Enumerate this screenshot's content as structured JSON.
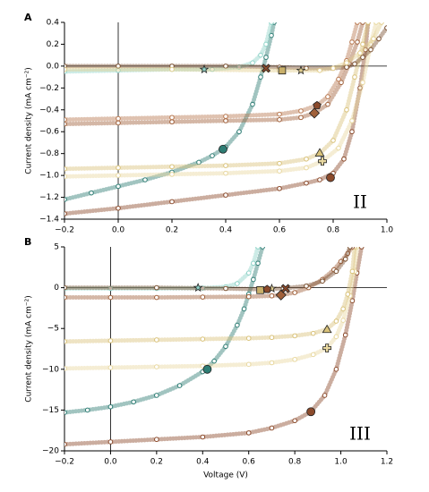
{
  "chart_data": [
    {
      "type": "line",
      "panel": "A",
      "annotation": "II",
      "ylabel": "Current density (mA cm⁻²)",
      "xlim": [
        -0.2,
        1.0
      ],
      "ylim": [
        -1.4,
        0.4
      ],
      "xticks": [
        {
          "value": -0.2,
          "label": "−0.2"
        },
        {
          "value": 0,
          "label": "0.0"
        },
        0.2,
        0.4,
        0.6,
        0.8,
        {
          "value": 1,
          "label": "1.0"
        }
      ],
      "yticks": [
        0.4,
        0.2,
        {
          "value": 0,
          "label": "0.0"
        },
        {
          "value": -0.2,
          "label": "−0.2"
        },
        {
          "value": -0.4,
          "label": "−0.4"
        },
        {
          "value": -0.6,
          "label": "−0.6"
        },
        {
          "value": -0.8,
          "label": "−0.8"
        },
        {
          "value": -1,
          "label": "−1.0"
        },
        {
          "value": -1.2,
          "label": "−1.2"
        },
        {
          "value": -1.4,
          "label": "−1.4"
        }
      ],
      "series": [
        {
          "color": "#2e7d74",
          "x": [
            -0.2,
            -0.1,
            0,
            0.1,
            0.2,
            0.3,
            0.35,
            0.4,
            0.45,
            0.5,
            0.53,
            0.55,
            0.57,
            0.58
          ],
          "values": [
            -1.22,
            -1.16,
            -1.1,
            -1.04,
            -0.97,
            -0.88,
            -0.82,
            -0.74,
            -0.6,
            -0.35,
            -0.1,
            0.08,
            0.28,
            0.4
          ]
        },
        {
          "color": "#8fd3c8",
          "x": [
            -0.2,
            0,
            0.2,
            0.35,
            0.45,
            0.5,
            0.53,
            0.55,
            0.57
          ],
          "values": [
            -0.05,
            -0.04,
            -0.03,
            -0.03,
            -0.01,
            0.03,
            0.1,
            0.2,
            0.4
          ]
        },
        {
          "color": "#8b4a2b",
          "x": [
            -0.2,
            0,
            0.2,
            0.4,
            0.6,
            0.7,
            0.75,
            0.8,
            0.84,
            0.87,
            0.9,
            0.92,
            0.93
          ],
          "values": [
            -1.35,
            -1.3,
            -1.24,
            -1.18,
            -1.12,
            -1.07,
            -1.04,
            -0.98,
            -0.85,
            -0.6,
            -0.2,
            0.15,
            0.4
          ]
        },
        {
          "color": "#e8d8a0",
          "x": [
            -0.2,
            0,
            0.2,
            0.4,
            0.6,
            0.7,
            0.76,
            0.82,
            0.87,
            0.91,
            0.94,
            0.96
          ],
          "values": [
            -1.01,
            -1.0,
            -0.99,
            -0.98,
            -0.96,
            -0.93,
            -0.87,
            -0.75,
            -0.5,
            -0.15,
            0.2,
            0.4
          ]
        },
        {
          "color": "#d9c27a",
          "x": [
            -0.2,
            0,
            0.2,
            0.4,
            0.6,
            0.7,
            0.75,
            0.8,
            0.85,
            0.88,
            0.91,
            0.93
          ],
          "values": [
            -0.94,
            -0.93,
            -0.92,
            -0.91,
            -0.89,
            -0.85,
            -0.8,
            -0.68,
            -0.4,
            -0.1,
            0.2,
            0.4
          ]
        },
        {
          "color": "#a0603a",
          "x": [
            -0.2,
            0,
            0.2,
            0.4,
            0.6,
            0.68,
            0.73,
            0.78,
            0.83,
            0.86,
            0.89,
            0.91
          ],
          "values": [
            -0.53,
            -0.52,
            -0.51,
            -0.5,
            -0.49,
            -0.47,
            -0.43,
            -0.35,
            -0.15,
            0.02,
            0.22,
            0.4
          ]
        },
        {
          "color": "#b87850",
          "x": [
            -0.2,
            0,
            0.2,
            0.4,
            0.6,
            0.68,
            0.74,
            0.78,
            0.82,
            0.85,
            0.87,
            0.89
          ],
          "values": [
            -0.49,
            -0.48,
            -0.47,
            -0.46,
            -0.44,
            -0.41,
            -0.36,
            -0.28,
            -0.12,
            0.05,
            0.22,
            0.4
          ]
        },
        {
          "color": "#7a5030",
          "x": [
            -0.2,
            0,
            0.2,
            0.4,
            0.6,
            0.7,
            0.8,
            0.85,
            0.88,
            0.91,
            0.94,
            0.97,
            1.0
          ],
          "values": [
            0,
            0,
            0,
            0,
            -0.01,
            -0.02,
            -0.02,
            -0.01,
            0.02,
            0.08,
            0.15,
            0.25,
            0.35
          ]
        },
        {
          "color": "#e3cf8e",
          "x": [
            -0.2,
            0.2,
            0.6,
            0.75,
            0.8,
            0.85,
            0.9,
            0.95,
            0.98
          ],
          "values": [
            -0.03,
            -0.03,
            -0.04,
            -0.04,
            -0.02,
            0.03,
            0.12,
            0.25,
            0.4
          ]
        }
      ],
      "markers": [
        {
          "x": 0.39,
          "y": -0.76,
          "shape": "circle",
          "color": "#2e7d74"
        },
        {
          "x": 0.32,
          "y": -0.03,
          "shape": "star",
          "color": "#8fd3c8"
        },
        {
          "x": 0.79,
          "y": -1.02,
          "shape": "circle",
          "color": "#8b4a2b"
        },
        {
          "x": 0.76,
          "y": -0.87,
          "shape": "plus",
          "color": "#e8d8a0"
        },
        {
          "x": 0.75,
          "y": -0.8,
          "shape": "triangle",
          "color": "#d9c27a"
        },
        {
          "x": 0.73,
          "y": -0.43,
          "shape": "diamond",
          "color": "#a0603a"
        },
        {
          "x": 0.74,
          "y": -0.36,
          "shape": "pentagon",
          "color": "#8b4a2b"
        },
        {
          "x": 0.55,
          "y": -0.02,
          "shape": "cross",
          "color": "#8b4a2b"
        },
        {
          "x": 0.61,
          "y": -0.04,
          "shape": "square",
          "color": "#c9b06a"
        },
        {
          "x": 0.68,
          "y": -0.04,
          "shape": "star",
          "color": "#e3cf8e"
        }
      ]
    },
    {
      "type": "line",
      "panel": "B",
      "annotation": "III",
      "xlabel": "Voltage (V)",
      "ylabel": "Current density (mA cm⁻²)",
      "xlim": [
        -0.2,
        1.2
      ],
      "ylim": [
        -20,
        5
      ],
      "xticks": [
        {
          "value": -0.2,
          "label": "−0.2"
        },
        {
          "value": 0,
          "label": "0.0"
        },
        0.2,
        0.4,
        0.6,
        0.8,
        {
          "value": 1,
          "label": "1.0"
        },
        1.2
      ],
      "yticks": [
        5,
        0,
        {
          "value": -5,
          "label": "−5"
        },
        {
          "value": -10,
          "label": "−10"
        },
        {
          "value": -15,
          "label": "−15"
        },
        {
          "value": -20,
          "label": "−20"
        }
      ],
      "series": [
        {
          "color": "#2e7d74",
          "x": [
            -0.2,
            -0.1,
            0,
            0.1,
            0.2,
            0.3,
            0.4,
            0.45,
            0.5,
            0.55,
            0.58,
            0.6,
            0.62,
            0.64,
            0.66
          ],
          "values": [
            -15.3,
            -15,
            -14.6,
            -14,
            -13.2,
            -12,
            -10.3,
            -9,
            -7.2,
            -4.6,
            -2.6,
            -0.8,
            1,
            3,
            5
          ]
        },
        {
          "color": "#8fd3c8",
          "x": [
            -0.2,
            0,
            0.2,
            0.4,
            0.5,
            0.55,
            0.6,
            0.62,
            0.64
          ],
          "values": [
            -0.1,
            -0.1,
            -0.1,
            -0.05,
            0.1,
            0.5,
            1.8,
            3,
            5
          ]
        },
        {
          "color": "#8b4a2b",
          "x": [
            -0.2,
            0,
            0.2,
            0.4,
            0.6,
            0.7,
            0.8,
            0.87,
            0.93,
            0.98,
            1.02,
            1.05,
            1.07,
            1.09
          ],
          "values": [
            -19.2,
            -18.9,
            -18.6,
            -18.3,
            -17.8,
            -17.2,
            -16.3,
            -15.2,
            -13.2,
            -10,
            -5.8,
            -1.6,
            1.8,
            5
          ]
        },
        {
          "color": "#e8d8a0",
          "x": [
            -0.2,
            0,
            0.2,
            0.4,
            0.6,
            0.7,
            0.8,
            0.88,
            0.94,
            0.98,
            1.01,
            1.04,
            1.06,
            1.07
          ],
          "values": [
            -9.9,
            -9.8,
            -9.7,
            -9.6,
            -9.4,
            -9.2,
            -8.8,
            -8.2,
            -7.4,
            -6,
            -4,
            -1,
            2,
            5
          ]
        },
        {
          "color": "#d9c27a",
          "x": [
            -0.2,
            0,
            0.2,
            0.4,
            0.6,
            0.7,
            0.8,
            0.88,
            0.94,
            0.98,
            1.01,
            1.03,
            1.05,
            1.06
          ],
          "values": [
            -6.6,
            -6.5,
            -6.4,
            -6.3,
            -6.2,
            -6.1,
            -5.9,
            -5.6,
            -5.1,
            -4.1,
            -2.6,
            -0.8,
            2,
            5
          ]
        },
        {
          "color": "#a0603a",
          "x": [
            -0.2,
            0,
            0.2,
            0.4,
            0.6,
            0.7,
            0.74,
            0.8,
            0.86,
            0.92,
            0.97,
            1.0,
            1.03,
            1.05
          ],
          "values": [
            -1.2,
            -1.2,
            -1.2,
            -1.15,
            -1.1,
            -1.0,
            -0.9,
            -0.6,
            0,
            1,
            2.2,
            3.2,
            4.2,
            5
          ]
        },
        {
          "color": "#7a5030",
          "x": [
            -0.2,
            0.2,
            0.5,
            0.65,
            0.75,
            0.85,
            0.92,
            0.98,
            1.02,
            1.04
          ],
          "values": [
            0,
            0,
            -0.1,
            -0.2,
            -0.1,
            0.2,
            0.8,
            2,
            3.5,
            5
          ]
        }
      ],
      "markers": [
        {
          "x": 0.42,
          "y": -10,
          "shape": "circle",
          "color": "#2e7d74"
        },
        {
          "x": 0.38,
          "y": 0,
          "shape": "star",
          "color": "#8fd3c8"
        },
        {
          "x": 0.87,
          "y": -15.2,
          "shape": "circle",
          "color": "#8b4a2b"
        },
        {
          "x": 0.94,
          "y": -7.4,
          "shape": "plus",
          "color": "#e8d8a0"
        },
        {
          "x": 0.94,
          "y": -5.2,
          "shape": "triangle",
          "color": "#d9c27a"
        },
        {
          "x": 0.74,
          "y": -0.9,
          "shape": "diamond",
          "color": "#a0603a"
        },
        {
          "x": 0.65,
          "y": -0.3,
          "shape": "square",
          "color": "#c9b06a"
        },
        {
          "x": 0.76,
          "y": -0.1,
          "shape": "cross",
          "color": "#8b4a2b"
        },
        {
          "x": 0.7,
          "y": -0.1,
          "shape": "star",
          "color": "#e3cf8e"
        },
        {
          "x": 0.68,
          "y": -0.2,
          "shape": "pentagon",
          "color": "#8b4a2b"
        }
      ]
    }
  ]
}
